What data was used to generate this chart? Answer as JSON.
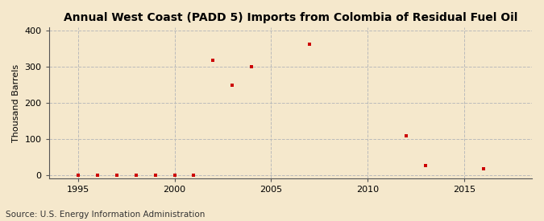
{
  "title": "Annual West Coast (PADD 5) Imports from Colombia of Residual Fuel Oil",
  "ylabel": "Thousand Barrels",
  "source_text": "Source: U.S. Energy Information Administration",
  "background_color": "#f5e8cc",
  "plot_background_color": "#f5e8cc",
  "marker_color": "#cc0000",
  "marker": "s",
  "markersize": 3.5,
  "xlim": [
    1993.5,
    2018.5
  ],
  "ylim": [
    -8,
    408
  ],
  "yticks": [
    0,
    100,
    200,
    300,
    400
  ],
  "xticks": [
    1995,
    2000,
    2005,
    2010,
    2015
  ],
  "grid_color": "#bbbbbb",
  "grid_style": "--",
  "title_fontsize": 10,
  "data_points": {
    "years": [
      1995,
      1996,
      1997,
      1998,
      1999,
      2000,
      2001,
      2002,
      2003,
      2004,
      2007,
      2012,
      2013,
      2016
    ],
    "values": [
      0,
      0,
      0,
      0,
      0,
      0,
      0,
      318,
      248,
      300,
      363,
      108,
      28,
      18
    ]
  }
}
